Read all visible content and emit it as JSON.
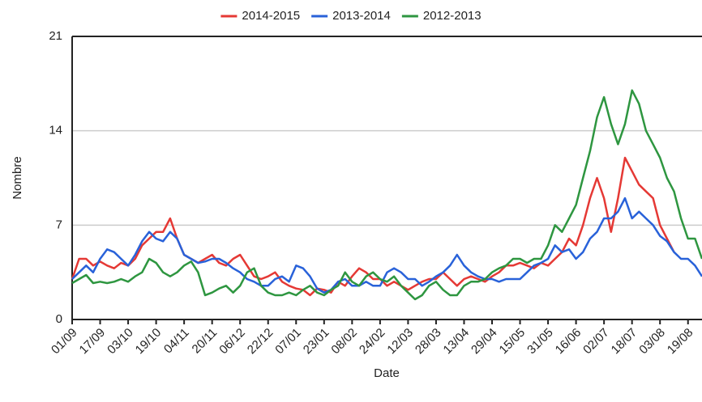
{
  "chart_data": {
    "type": "line",
    "x_label": "Date",
    "y_label": "Nombre",
    "categories": [
      "01/09",
      null,
      null,
      null,
      "17/09",
      null,
      null,
      null,
      "03/10",
      null,
      null,
      null,
      "19/10",
      null,
      null,
      null,
      "04/11",
      null,
      null,
      null,
      "20/11",
      null,
      null,
      null,
      "06/12",
      null,
      null,
      null,
      "22/12",
      null,
      null,
      null,
      "07/01",
      null,
      null,
      null,
      "23/01",
      null,
      null,
      null,
      "08/02",
      null,
      null,
      null,
      "24/02",
      null,
      null,
      null,
      "12/03",
      null,
      null,
      null,
      "28/03",
      null,
      null,
      null,
      "13/04",
      null,
      null,
      null,
      "29/04",
      null,
      null,
      null,
      "15/05",
      null,
      null,
      null,
      "31/05",
      null,
      null,
      null,
      "16/06",
      null,
      null,
      null,
      "02/07",
      null,
      null,
      null,
      "18/07",
      null,
      null,
      null,
      "03/08",
      null,
      null,
      null,
      "19/08",
      null,
      null
    ],
    "series": [
      {
        "name": "2014-2015",
        "color": "#e53935",
        "values": [
          3,
          4.5,
          4.5,
          4,
          4.3,
          4,
          3.8,
          4.2,
          4,
          4.5,
          5.5,
          6,
          6.5,
          6.5,
          7.5,
          6,
          4.8,
          4.5,
          4.2,
          4.5,
          4.8,
          4.2,
          4,
          4.5,
          4.8,
          4,
          3.2,
          3,
          3.2,
          3.5,
          2.8,
          2.5,
          2.3,
          2.2,
          1.8,
          2.3,
          2.2,
          2,
          2.8,
          2.5,
          3.2,
          3.8,
          3.5,
          3,
          3,
          2.5,
          2.8,
          2.5,
          2.2,
          2.5,
          2.8,
          3,
          3,
          3.5,
          3,
          2.5,
          3,
          3.2,
          3,
          2.8,
          3.2,
          3.5,
          4,
          4,
          4.2,
          4,
          3.8,
          4.2,
          4,
          4.5,
          5,
          6,
          5.5,
          7,
          9,
          10.5,
          9,
          6.5,
          9,
          12,
          11,
          10,
          9.5,
          9,
          7,
          6,
          5,
          null,
          null,
          null,
          null
        ]
      },
      {
        "name": "2013-2014",
        "color": "#2962d9",
        "values": [
          3,
          3.5,
          4,
          3.5,
          4.5,
          5.2,
          5,
          4.5,
          4,
          4.8,
          5.8,
          6.5,
          6,
          5.8,
          6.5,
          6,
          4.8,
          4.5,
          4.2,
          4.3,
          4.5,
          4.5,
          4.2,
          3.8,
          3.5,
          3,
          2.8,
          2.5,
          2.5,
          3,
          3.2,
          2.8,
          4,
          3.8,
          3.2,
          2.3,
          2,
          2.2,
          2.8,
          3,
          2.5,
          2.5,
          2.8,
          2.5,
          2.5,
          3.5,
          3.8,
          3.5,
          3,
          3,
          2.5,
          2.8,
          3.2,
          3.5,
          4,
          4.8,
          4,
          3.5,
          3.2,
          3,
          3,
          2.8,
          3,
          3,
          3,
          3.5,
          4,
          4.2,
          4.5,
          5.5,
          5,
          5.2,
          4.5,
          5,
          6,
          6.5,
          7.5,
          7.5,
          8,
          9,
          7.5,
          8,
          7.5,
          7,
          6.2,
          5.8,
          5,
          4.5,
          4.5,
          4,
          3.2
        ]
      },
      {
        "name": "2012-2013",
        "color": "#2e9640",
        "values": [
          2.7,
          3,
          3.3,
          2.7,
          2.8,
          2.7,
          2.8,
          3,
          2.8,
          3.2,
          3.5,
          4.5,
          4.2,
          3.5,
          3.2,
          3.5,
          4,
          4.3,
          3.5,
          1.8,
          2,
          2.3,
          2.5,
          2,
          2.5,
          3.5,
          3.8,
          2.5,
          2,
          1.8,
          1.8,
          2,
          1.8,
          2.2,
          2.5,
          2,
          1.8,
          2.2,
          2.5,
          3.5,
          2.8,
          2.5,
          3.2,
          3.5,
          3,
          2.8,
          3.2,
          2.5,
          2,
          1.5,
          1.8,
          2.5,
          2.8,
          2.2,
          1.8,
          1.8,
          2.5,
          2.8,
          2.8,
          3,
          3.5,
          3.8,
          4,
          4.5,
          4.5,
          4.2,
          4.5,
          4.5,
          5.5,
          7,
          6.5,
          7.5,
          8.5,
          10.5,
          12.5,
          15,
          16.5,
          14.5,
          13,
          14.5,
          17,
          16,
          14,
          13,
          12,
          10.5,
          9.5,
          7.5,
          6,
          6,
          4.5
        ]
      }
    ],
    "ylim": [
      0,
      21
    ],
    "yticks": [
      0,
      7,
      14,
      21
    ],
    "grid": true,
    "legend": "top"
  }
}
